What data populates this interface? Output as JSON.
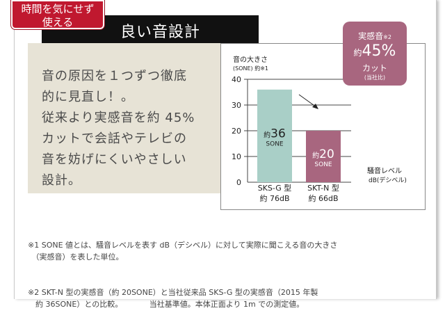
{
  "tag": {
    "line1": "時間を気にせず",
    "line2": "使える"
  },
  "header": {
    "title": "良い音設計"
  },
  "body": {
    "text": "音の原因を１つずつ徹底\n的に見直し！。\n従来より実感音を約 45%\nカットで会話やテレビの\n音を妨げにくいやさしい\n設計。"
  },
  "badge": {
    "line1": "実感音",
    "note_mark": "※2",
    "prefix": "約",
    "percent": "45%",
    "line3": "カット",
    "line4": "(当社比)"
  },
  "chart_data": {
    "type": "bar",
    "ylabel_line1": "音の大きさ",
    "ylabel_line2": "(SONE) 約※1",
    "xlabel_line1": "騒音レベル",
    "xlabel_line2": "dB(デシベル)",
    "yticks": [
      0,
      10,
      20,
      30,
      40
    ],
    "ylim": [
      0,
      40
    ],
    "grid": true,
    "categories": [
      {
        "name": "SKS-G 型",
        "db": "約 76dB"
      },
      {
        "name": "SKT-N 型",
        "db": "約 66dB"
      }
    ],
    "values": [
      36,
      20
    ],
    "bar_labels": [
      {
        "prefix": "約",
        "num": "36",
        "unit": "SONE"
      },
      {
        "prefix": "約",
        "num": "20",
        "unit": "SONE"
      }
    ],
    "colors": [
      "#a9cfc7",
      "#a8667f"
    ]
  },
  "notes": {
    "n1": "※1 SONE 値とは、騒音レベルを表す dB（デシベル）に対して実際に聞こえる音の大きさ\n　（実感音）を表した単位。",
    "n2": "※2 SKT-N 型の実感音（約 20SONE）と当社従来品 SKS-G 型の実感音（2015 年製\n　約 36SONE）との比較。　　　　当社基準値。本体正面より 1m での測定値。"
  }
}
